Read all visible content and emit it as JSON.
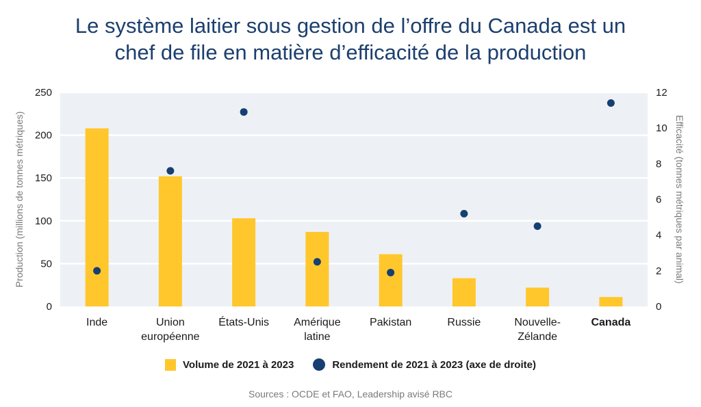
{
  "title_line1": "Le système laitier sous gestion de l’offre du Canada est un",
  "title_line2": "chef de file en matière d’efficacité de la production",
  "source": "Sources : OCDE et FAO, Leadership avisé RBC",
  "legend": {
    "volume_label": "Volume de 2021 à 2023",
    "yield_label": "Rendement de 2021 à 2023 (axe de droite)"
  },
  "colors": {
    "bar": "#ffc72c",
    "dot": "#163f72",
    "plot_bg": "#edf1f5",
    "grid": "#ffffff"
  },
  "chart_data": {
    "type": "bar",
    "categories": [
      [
        "Inde"
      ],
      [
        "Union",
        "européenne"
      ],
      [
        "États-Unis"
      ],
      [
        "Amérique",
        "latine"
      ],
      [
        "Pakistan"
      ],
      [
        "Russie"
      ],
      [
        "Nouvelle-",
        "Zélande"
      ],
      [
        "Canada"
      ]
    ],
    "bold_category": "Canada",
    "series": [
      {
        "name": "Volume de 2021 à 2023",
        "type": "bar",
        "axis": "left",
        "values": [
          208,
          152,
          103,
          87,
          61,
          33,
          22,
          11
        ]
      },
      {
        "name": "Rendement de 2021 à 2023 (axe de droite)",
        "type": "scatter",
        "axis": "right",
        "values": [
          2.0,
          7.6,
          10.9,
          2.5,
          1.9,
          5.2,
          4.5,
          11.4
        ]
      }
    ],
    "ylabel": "Production (millions de tonnes métriques)",
    "ylabel_right": "Efficacité (tonnes métriques par animal)",
    "ylim": [
      0,
      250
    ],
    "yticks": [
      0,
      50,
      100,
      150,
      200,
      250
    ],
    "ylim_right": [
      0,
      12
    ],
    "yticks_right": [
      0,
      2,
      4,
      6,
      8,
      10,
      12
    ],
    "grid": true,
    "legend_position": "bottom"
  }
}
